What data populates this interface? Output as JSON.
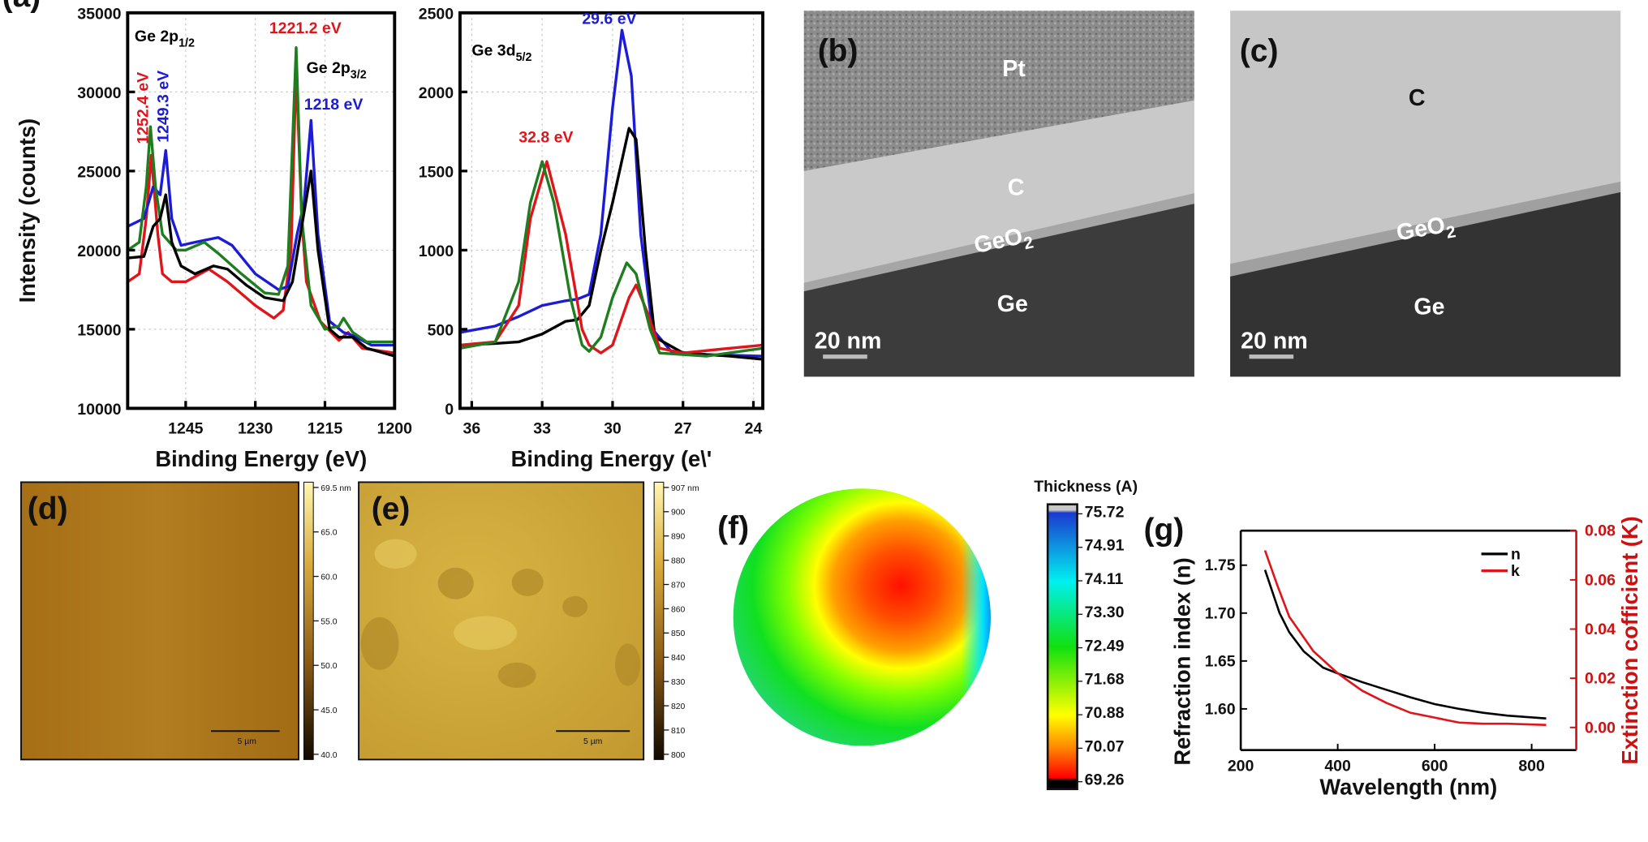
{
  "colors": {
    "red": "#e0141b",
    "blue": "#1b1bd8",
    "green": "#1e7d1e",
    "black": "#000000",
    "k_axis": "#d01010"
  },
  "panel_a": {
    "label": "(a)",
    "chart_data": [
      {
        "type": "line",
        "ylabel": "Intensity (counts)",
        "xlabel": "Binding Energy (eV)",
        "xlim": [
          1257.5,
          1200
        ],
        "ylim": [
          10000,
          35000
        ],
        "x_reversed": true,
        "grid": true,
        "xticks": [
          1245,
          1230,
          1215,
          1200
        ],
        "yticks": [
          10000,
          15000,
          20000,
          25000,
          30000,
          35000
        ],
        "annotations": [
          {
            "text": "Ge 2p",
            "sub": "1/2",
            "color": "black",
            "x": 1256,
            "y": 33200
          },
          {
            "text": "Ge 2p",
            "sub": "3/2",
            "color": "black",
            "x": 1219,
            "y": 31200
          },
          {
            "text": "1221.2 eV",
            "color": "red",
            "x": 1227,
            "y": 33700
          },
          {
            "text": "1218 eV",
            "color": "blue",
            "x": 1219.5,
            "y": 28900
          },
          {
            "text": "1252.4 eV",
            "color": "red",
            "x": 1252.5,
            "y": 26700,
            "rotated": true
          },
          {
            "text": "1249.3 eV",
            "color": "blue",
            "x": 1249.3,
            "y": 26800,
            "rotated": true
          }
        ],
        "series": [
          {
            "color": "red",
            "points": [
              [
                1257.5,
                18000
              ],
              [
                1255,
                18500
              ],
              [
                1253.5,
                22000
              ],
              [
                1252.4,
                26000
              ],
              [
                1251,
                21000
              ],
              [
                1250,
                18500
              ],
              [
                1248,
                18000
              ],
              [
                1245,
                18000
              ],
              [
                1240,
                18800
              ],
              [
                1236,
                18000
              ],
              [
                1230,
                16500
              ],
              [
                1226,
                15700
              ],
              [
                1224,
                16200
              ],
              [
                1222.3,
                20000
              ],
              [
                1221.2,
                31500
              ],
              [
                1220,
                22000
              ],
              [
                1219,
                18000
              ],
              [
                1216,
                15500
              ],
              [
                1212,
                14300
              ],
              [
                1210,
                14800
              ],
              [
                1207,
                13800
              ],
              [
                1200,
                13500
              ]
            ]
          },
          {
            "color": "blue",
            "points": [
              [
                1257.5,
                21500
              ],
              [
                1254,
                22000
              ],
              [
                1252,
                24000
              ],
              [
                1250.5,
                23500
              ],
              [
                1249.3,
                26300
              ],
              [
                1248,
                22000
              ],
              [
                1246,
                20300
              ],
              [
                1243,
                20500
              ],
              [
                1238,
                20800
              ],
              [
                1235,
                20300
              ],
              [
                1230,
                18500
              ],
              [
                1225,
                17500
              ],
              [
                1223,
                17700
              ],
              [
                1221,
                21000
              ],
              [
                1219.5,
                23000
              ],
              [
                1218,
                28200
              ],
              [
                1216.5,
                21000
              ],
              [
                1214,
                15500
              ],
              [
                1211,
                14800
              ],
              [
                1209,
                14600
              ],
              [
                1205,
                14000
              ],
              [
                1200,
                14000
              ]
            ]
          },
          {
            "color": "green",
            "points": [
              [
                1257.5,
                20000
              ],
              [
                1255,
                20500
              ],
              [
                1253.5,
                24000
              ],
              [
                1252.6,
                27800
              ],
              [
                1251.5,
                24000
              ],
              [
                1250,
                21000
              ],
              [
                1247,
                20000
              ],
              [
                1245,
                20000
              ],
              [
                1241,
                20500
              ],
              [
                1238,
                19800
              ],
              [
                1233,
                18500
              ],
              [
                1228,
                17300
              ],
              [
                1225,
                17200
              ],
              [
                1223,
                19000
              ],
              [
                1221.2,
                32800
              ],
              [
                1220,
                22000
              ],
              [
                1218,
                16500
              ],
              [
                1215,
                15000
              ],
              [
                1212,
                15200
              ],
              [
                1211,
                15700
              ],
              [
                1209,
                14800
              ],
              [
                1206,
                14200
              ],
              [
                1200,
                14200
              ]
            ]
          },
          {
            "color": "black",
            "points": [
              [
                1257.5,
                19500
              ],
              [
                1254,
                19600
              ],
              [
                1252,
                21500
              ],
              [
                1250.5,
                22000
              ],
              [
                1249.3,
                23500
              ],
              [
                1248,
                20500
              ],
              [
                1246,
                19000
              ],
              [
                1243,
                18500
              ],
              [
                1239,
                19000
              ],
              [
                1236,
                18800
              ],
              [
                1232,
                17800
              ],
              [
                1228,
                17000
              ],
              [
                1224,
                16800
              ],
              [
                1222,
                18000
              ],
              [
                1220,
                21500
              ],
              [
                1218,
                25000
              ],
              [
                1216.5,
                20000
              ],
              [
                1214,
                15000
              ],
              [
                1212,
                14500
              ],
              [
                1209,
                14500
              ],
              [
                1206,
                13800
              ],
              [
                1200,
                13300
              ]
            ]
          }
        ]
      },
      {
        "type": "line",
        "xlabel": "Binding Energy (e\\'",
        "xlim": [
          36.5,
          23.6
        ],
        "ylim": [
          0,
          2500
        ],
        "x_reversed": true,
        "grid": true,
        "xticks": [
          36,
          33,
          30,
          27,
          24
        ],
        "yticks": [
          0,
          500,
          1000,
          1500,
          2000,
          2500
        ],
        "annotations": [
          {
            "text": "Ge 3d",
            "sub": "5/2",
            "color": "black",
            "x": 36,
            "y": 2230
          },
          {
            "text": "32.8 eV",
            "color": "red",
            "x": 34,
            "y": 1680
          },
          {
            "text": "29.6 eV",
            "color": "blue",
            "x": 31.3,
            "y": 2430
          }
        ],
        "series": [
          {
            "color": "blue",
            "points": [
              [
                36.5,
                480
              ],
              [
                35,
                520
              ],
              [
                34,
                580
              ],
              [
                33,
                650
              ],
              [
                32,
                680
              ],
              [
                31.5,
                690
              ],
              [
                31,
                720
              ],
              [
                30.5,
                1100
              ],
              [
                30,
                1900
              ],
              [
                29.6,
                2390
              ],
              [
                29.2,
                2100
              ],
              [
                28.8,
                1100
              ],
              [
                28.3,
                500
              ],
              [
                27.5,
                360
              ],
              [
                26,
                340
              ],
              [
                23.6,
                330
              ]
            ]
          },
          {
            "color": "black",
            "points": [
              [
                36.5,
                400
              ],
              [
                35,
                410
              ],
              [
                34,
                420
              ],
              [
                33,
                470
              ],
              [
                32,
                550
              ],
              [
                31.5,
                560
              ],
              [
                31,
                650
              ],
              [
                30.5,
                1000
              ],
              [
                30,
                1300
              ],
              [
                29.3,
                1770
              ],
              [
                29,
                1700
              ],
              [
                28.6,
                1000
              ],
              [
                28.2,
                450
              ],
              [
                27,
                350
              ],
              [
                25,
                330
              ],
              [
                23.6,
                310
              ]
            ]
          },
          {
            "color": "red",
            "points": [
              [
                36.5,
                400
              ],
              [
                35,
                420
              ],
              [
                34,
                650
              ],
              [
                33.5,
                1200
              ],
              [
                32.8,
                1560
              ],
              [
                32,
                1100
              ],
              [
                31.3,
                500
              ],
              [
                31,
                400
              ],
              [
                30.5,
                350
              ],
              [
                30,
                400
              ],
              [
                29.3,
                700
              ],
              [
                29,
                780
              ],
              [
                28.5,
                600
              ],
              [
                28,
                380
              ],
              [
                27,
                350
              ],
              [
                25,
                380
              ],
              [
                23.6,
                400
              ]
            ]
          },
          {
            "color": "green",
            "points": [
              [
                36.5,
                380
              ],
              [
                35,
                420
              ],
              [
                34,
                800
              ],
              [
                33.5,
                1300
              ],
              [
                33,
                1560
              ],
              [
                32.5,
                1300
              ],
              [
                31.8,
                700
              ],
              [
                31.3,
                400
              ],
              [
                31,
                360
              ],
              [
                30.5,
                450
              ],
              [
                30,
                700
              ],
              [
                29.4,
                920
              ],
              [
                29,
                850
              ],
              [
                28.4,
                500
              ],
              [
                28,
                350
              ],
              [
                26,
                330
              ],
              [
                23.6,
                380
              ]
            ]
          }
        ]
      }
    ]
  },
  "panel_b": {
    "label": "(b)",
    "layers": [
      "Pt",
      "C",
      "GeO",
      "Ge"
    ],
    "sub": "2",
    "scale": "20 nm"
  },
  "panel_c": {
    "label": "(c)",
    "layers": [
      "C",
      "GeO",
      "Ge"
    ],
    "sub": "2",
    "scale": "20 nm"
  },
  "panel_d": {
    "label": "(d)",
    "scale": "5 µm",
    "colorbar": [
      "69.5 nm",
      "65.0",
      "60.0",
      "55.0",
      "50.0",
      "45.0",
      "40.0"
    ]
  },
  "panel_e": {
    "label": "(e)",
    "scale": "5 µm",
    "colorbar": [
      "907 nm",
      "900",
      "890",
      "880",
      "870",
      "860",
      "850",
      "840",
      "830",
      "820",
      "810",
      "800"
    ]
  },
  "panel_f": {
    "label": "(f)",
    "colorbar_title": "Thickness (A)",
    "colorbar": [
      "75.72",
      "74.91",
      "74.11",
      "73.30",
      "72.49",
      "71.68",
      "70.88",
      "70.07",
      "69.26"
    ]
  },
  "panel_g": {
    "label": "(g)",
    "chart_data": {
      "type": "line",
      "xlabel": "Wavelength (nm)",
      "ylabel": "Refraction index (n)",
      "y2label": "Extinction cofficient (K)",
      "xlim": [
        200,
        892
      ],
      "ylim": [
        1.557,
        1.786
      ],
      "y2lim": [
        -0.0092,
        0.08
      ],
      "xticks": [
        200,
        400,
        600,
        800
      ],
      "yticks": [
        1.6,
        1.65,
        1.7,
        1.75
      ],
      "y2ticks": [
        0.0,
        0.02,
        0.04,
        0.06,
        0.08
      ],
      "legend": "top-right",
      "series": [
        {
          "name": "n",
          "color": "black",
          "axis": "left",
          "points": [
            [
              250,
              1.745
            ],
            [
              280,
              1.7
            ],
            [
              300,
              1.68
            ],
            [
              330,
              1.66
            ],
            [
              370,
              1.643
            ],
            [
              400,
              1.637
            ],
            [
              450,
              1.628
            ],
            [
              500,
              1.62
            ],
            [
              550,
              1.612
            ],
            [
              600,
              1.605
            ],
            [
              650,
              1.6
            ],
            [
              700,
              1.596
            ],
            [
              750,
              1.593
            ],
            [
              830,
              1.59
            ]
          ]
        },
        {
          "name": "k",
          "color": "red",
          "axis": "right",
          "points": [
            [
              250,
              0.072
            ],
            [
              275,
              0.058
            ],
            [
              300,
              0.045
            ],
            [
              350,
              0.031
            ],
            [
              400,
              0.022
            ],
            [
              450,
              0.015
            ],
            [
              500,
              0.01
            ],
            [
              550,
              0.006
            ],
            [
              600,
              0.004
            ],
            [
              650,
              0.002
            ],
            [
              700,
              0.0015
            ],
            [
              750,
              0.0015
            ],
            [
              830,
              0.001
            ]
          ]
        }
      ]
    }
  }
}
